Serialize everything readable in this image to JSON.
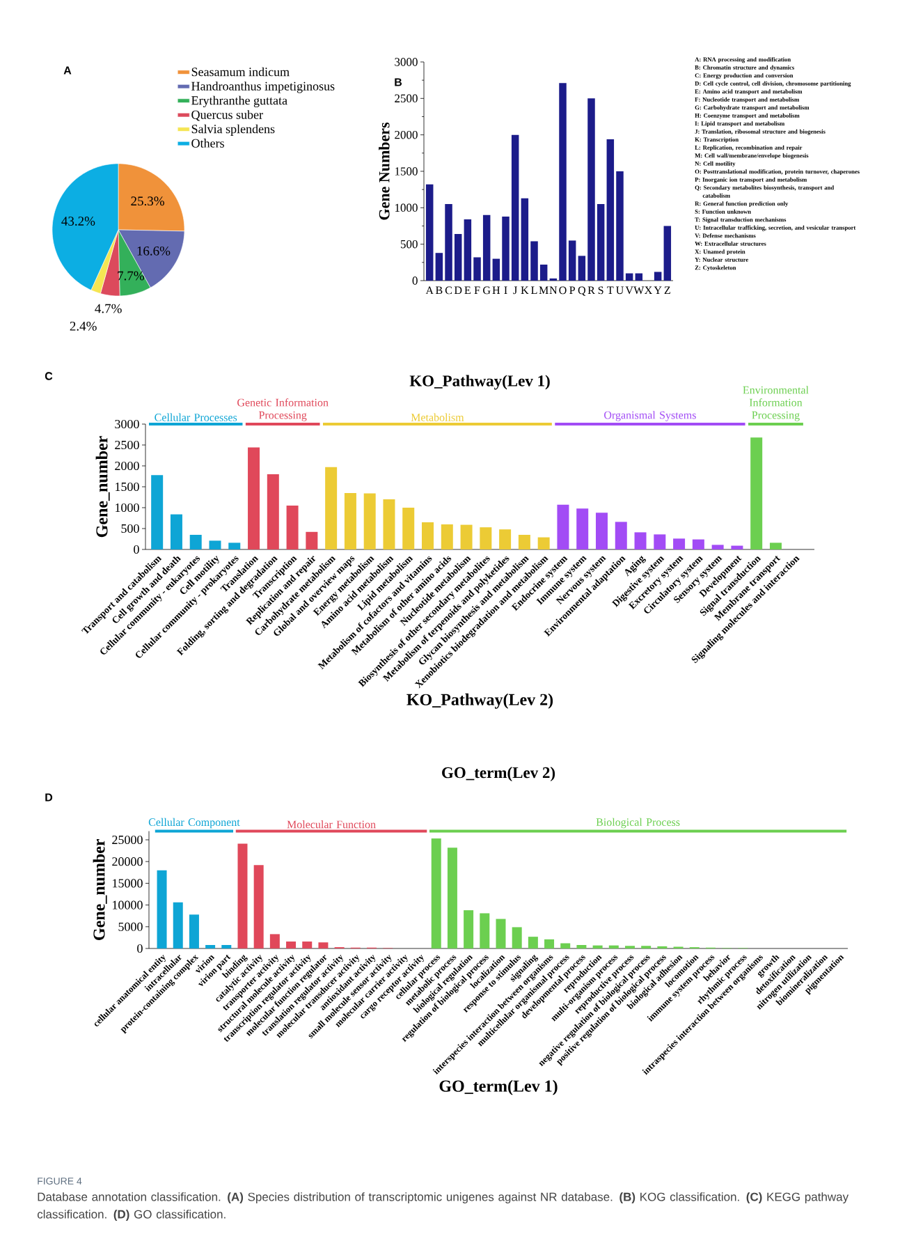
{
  "chart_data": [
    {
      "type": "pie",
      "annotations": [
        "A"
      ],
      "categories": [
        "Seasamum indicum",
        "Handroanthus impetiginosus",
        "Erythranthe guttata",
        "Quercus suber",
        "Salvia splendens",
        "Others"
      ],
      "values": [
        25.3,
        16.6,
        7.7,
        4.7,
        2.4,
        43.2
      ],
      "value_labels": [
        "25.3%",
        "16.6%",
        "7.7%",
        "4.7%",
        "2.4%",
        "43.2%"
      ],
      "colors": [
        "#f0923a",
        "#636bb1",
        "#33b05a",
        "#dc4a5c",
        "#f5e553",
        "#0caee3"
      ],
      "legend": "top right"
    },
    {
      "type": "bar",
      "annotations": [
        "B",
        "A: RNA processing and modification",
        "B: Chromatin structure and dynamics",
        "C: Energy production and conversion",
        "D: Cell cycle control, cell division, chromosome partitioning",
        "E: Amino acid transport and metabolism",
        "F: Nucleotide transport and metabolism",
        "G: Carbohydrate transport and metabolism",
        "H: Coenzyme transport and metabolism",
        "I: Lipid transport and metabolism",
        "J: Translation, ribosomal structure and biogenesis",
        "K: Transcription",
        "L: Replication, recombination and repair",
        "M: Cell wall/membrane/envelope biogenesis",
        "N: Cell motility",
        "O: Posttranslational modification, protein turnover, chaperones",
        "P: Inorganic ion transport and metabolism",
        "Q: Secondary metabolites biosynthesis, transport and catabolism",
        "R: General function prediction only",
        "S: Function unknown",
        "T: Signal transduction mechanisms",
        "U: Intracellular trafficking, secretion, and vesicular transport",
        "V: Defense mechanisms",
        "W: Extracellular structures",
        "X: Unamed protein",
        "Y: Nuclear structure",
        "Z: Cytoskeleton"
      ],
      "ylabel": "Gene Numbers",
      "categories": [
        "A",
        "B",
        "C",
        "D",
        "E",
        "F",
        "G",
        "H",
        "I",
        "J",
        "K",
        "L",
        "M",
        "N",
        "O",
        "P",
        "Q",
        "R",
        "S",
        "T",
        "U",
        "V",
        "W",
        "X",
        "Y",
        "Z"
      ],
      "values": [
        1320,
        380,
        1050,
        640,
        840,
        320,
        900,
        300,
        880,
        2000,
        1130,
        540,
        220,
        30,
        2710,
        550,
        340,
        2500,
        1050,
        1940,
        1500,
        100,
        100,
        0,
        120,
        750
      ],
      "color": "#1c1c8a",
      "ylim": [
        0,
        3000
      ],
      "yticks": [
        0,
        500,
        1000,
        1500,
        2000,
        2500,
        3000
      ]
    },
    {
      "type": "bar",
      "annotations": [
        "C"
      ],
      "title": "KO_Pathway(Lev 1)",
      "xlabel": "KO_Pathway(Lev 2)",
      "ylabel": "Gene_number",
      "categories": [
        "Transport and catabolism",
        "Cell growth and death",
        "Cellular community - eukaryotes",
        "Cell motility",
        "Cellular community - prokaryotes",
        "Translation",
        "Folding, sorting and degradation",
        "Transcription",
        "Replication and repair",
        "Carbohydrate metabolism",
        "Global and overview maps",
        "Energy metabolism",
        "Amino acid metabolism",
        "Lipid metabolism",
        "Metabolism of cofactors and vitamins",
        "Metabolism of other amino acids",
        "Nucleotide metabolism",
        "Biosynthesis of other secondary metabolites",
        "Metabolism of terpenoids and polyketides",
        "Glycan biosynthesis and metabolism",
        "Xenobiotics biodegradation and metabolism",
        "Endocrine system",
        "Immune system",
        "Nervous system",
        "Environmental adaptation",
        "Aging",
        "Digestive system",
        "Excretory system",
        "Circulatory system",
        "Sensory system",
        "Development",
        "Signal transduction",
        "Membrane transport",
        "Signaling molecules and interaction"
      ],
      "series": [
        {
          "name": "Cellular Processes",
          "color": "#0ea5d5",
          "values": [
            1780,
            840,
            350,
            210,
            160,
            null,
            null,
            null,
            null,
            null,
            null,
            null,
            null,
            null,
            null,
            null,
            null,
            null,
            null,
            null,
            null,
            null,
            null,
            null,
            null,
            null,
            null,
            null,
            null,
            null,
            null,
            null,
            null,
            null
          ]
        },
        {
          "name": "Genetic Information Processing",
          "color": "#e0485a",
          "values": [
            null,
            null,
            null,
            null,
            null,
            2440,
            1800,
            1050,
            420,
            null,
            null,
            null,
            null,
            null,
            null,
            null,
            null,
            null,
            null,
            null,
            null,
            null,
            null,
            null,
            null,
            null,
            null,
            null,
            null,
            null,
            null,
            null,
            null,
            null
          ]
        },
        {
          "name": "Metabolism",
          "color": "#eccb35",
          "values": [
            null,
            null,
            null,
            null,
            null,
            null,
            null,
            null,
            null,
            1970,
            1350,
            1340,
            1200,
            1000,
            650,
            600,
            590,
            530,
            480,
            350,
            290,
            null,
            null,
            null,
            null,
            null,
            null,
            null,
            null,
            null,
            null,
            null,
            null,
            null
          ]
        },
        {
          "name": "Organismal Systems",
          "color": "#a24cf5",
          "values": [
            null,
            null,
            null,
            null,
            null,
            null,
            null,
            null,
            null,
            null,
            null,
            null,
            null,
            null,
            null,
            null,
            null,
            null,
            null,
            null,
            null,
            1070,
            980,
            880,
            660,
            410,
            360,
            260,
            240,
            110,
            90,
            null,
            null,
            null
          ]
        },
        {
          "name": "Environmental Information Processing",
          "color": "#6ccf50",
          "values": [
            null,
            null,
            null,
            null,
            null,
            null,
            null,
            null,
            null,
            null,
            null,
            null,
            null,
            null,
            null,
            null,
            null,
            null,
            null,
            null,
            null,
            null,
            null,
            null,
            null,
            null,
            null,
            null,
            null,
            null,
            null,
            2680,
            160,
            0
          ]
        }
      ],
      "ylim": [
        0,
        3000
      ],
      "yticks": [
        0,
        500,
        1000,
        1500,
        2000,
        2500,
        3000
      ]
    },
    {
      "type": "bar",
      "annotations": [
        "D",
        "FIGURE 4",
        "Database annotation classification. **(A)** Species distribution of transcriptomic unigenes against NR database. **(B)** KOG classification. **(C)** KEGG pathway classification. **(D)** GO classification."
      ],
      "title": "GO_term(Lev 2)",
      "xlabel": "GO_term(Lev 1)",
      "ylabel": "Gene_number",
      "categories": [
        "cellular anatomical entity",
        "intracellular",
        "protein-containing complex",
        "virion",
        "virion part",
        "binding",
        "catalytic activity",
        "transporter activity",
        "structural molecule activity",
        "transcription regulator activity",
        "molecular function regulator",
        "translation regulator activity",
        "molecular transducer activity",
        "antioxidant activity",
        "small molecule sensor activity",
        "molecular carrier activity",
        "cargo receptor activity",
        "cellular process",
        "metabolic process",
        "biological regulation",
        "regulation of biological process",
        "localization",
        "response to stimulus",
        "signaling",
        "interspecies interaction between organisms",
        "multicellular organismal process",
        "developmental process",
        "reproduction",
        "multi-organism process",
        "reproductive process",
        "negative regulation of biological process",
        "positive regulation of biological process",
        "biological adhesion",
        "locomotion",
        "immune system process",
        "behavior",
        "rhythmic process",
        "intraspecies interaction between organisms",
        "growth",
        "detoxification",
        "nitrogen utilization",
        "biomineralization",
        "pigmentation"
      ],
      "series": [
        {
          "name": "Cellular Component",
          "color": "#0ea5d5",
          "values": [
            18000,
            10600,
            7800,
            800,
            800,
            null,
            null,
            null,
            null,
            null,
            null,
            null,
            null,
            null,
            null,
            null,
            null,
            null,
            null,
            null,
            null,
            null,
            null,
            null,
            null,
            null,
            null,
            null,
            null,
            null,
            null,
            null,
            null,
            null,
            null,
            null,
            null,
            null,
            null,
            null,
            null,
            null,
            null
          ]
        },
        {
          "name": "Molecular Function",
          "color": "#e0485a",
          "values": [
            null,
            null,
            null,
            null,
            null,
            24100,
            19200,
            3300,
            1600,
            1600,
            1400,
            300,
            200,
            200,
            100,
            0,
            0,
            null,
            null,
            null,
            null,
            null,
            null,
            null,
            null,
            null,
            null,
            null,
            null,
            null,
            null,
            null,
            null,
            null,
            null,
            null,
            null,
            null,
            null,
            null,
            null,
            null,
            null
          ]
        },
        {
          "name": "Biological Process",
          "color": "#6ccf50",
          "values": [
            null,
            null,
            null,
            null,
            null,
            null,
            null,
            null,
            null,
            null,
            null,
            null,
            null,
            null,
            null,
            null,
            null,
            25300,
            23200,
            8800,
            8100,
            6800,
            4900,
            2700,
            2100,
            1200,
            800,
            700,
            700,
            600,
            600,
            500,
            400,
            300,
            200,
            100,
            100,
            0,
            0,
            0,
            0,
            0,
            0
          ]
        }
      ],
      "ylim": [
        0,
        27000
      ],
      "yticks": [
        0,
        5000,
        10000,
        15000,
        20000,
        25000
      ]
    }
  ]
}
